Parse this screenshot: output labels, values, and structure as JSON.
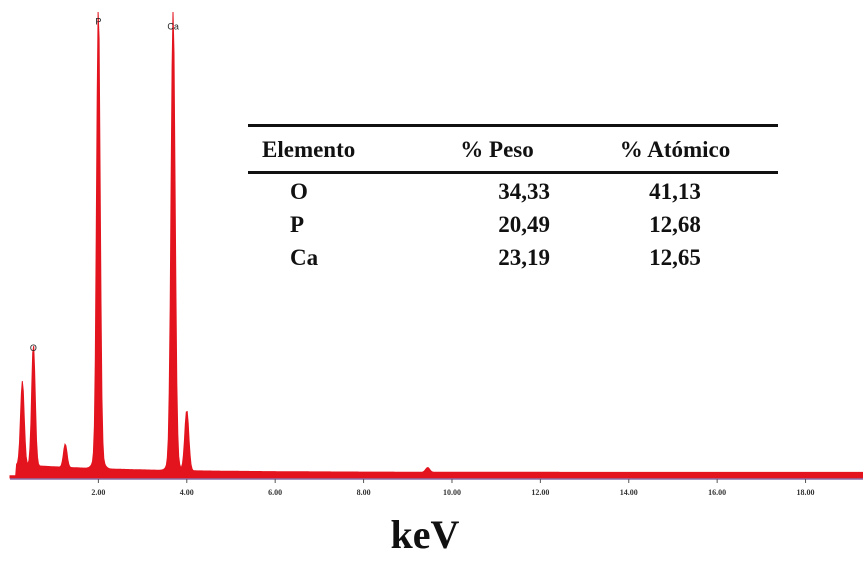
{
  "chart_data": {
    "type": "line",
    "xlabel": "keV",
    "xlim": [
      0,
      19.3
    ],
    "ylim": [
      0,
      1.0
    ],
    "x_tick_labels": [
      "2.00",
      "4.00",
      "6.00",
      "8.00",
      "10.00",
      "12.00",
      "14.00",
      "16.00",
      "18.00"
    ],
    "x_ticks": [
      2,
      4,
      6,
      8,
      10,
      12,
      14,
      16,
      18
    ],
    "series_color": "#e3141e",
    "peaks": [
      {
        "label": "",
        "x": 0.28,
        "height": 0.18
      },
      {
        "label": "O",
        "x": 0.53,
        "height": 0.26
      },
      {
        "label": "",
        "x": 1.25,
        "height": 0.05
      },
      {
        "label": "P",
        "x": 2.0,
        "height": 0.96
      },
      {
        "label": "Ca",
        "x": 3.69,
        "height": 0.95
      },
      {
        "label": "",
        "x": 4.0,
        "height": 0.13
      },
      {
        "label": "",
        "x": 9.45,
        "height": 0.01
      }
    ],
    "table": {
      "headers": [
        "Elemento",
        "% Peso",
        "% Atómico"
      ],
      "rows": [
        [
          "O",
          "34,33",
          "41,13"
        ],
        [
          "P",
          "20,49",
          "12,68"
        ],
        [
          "Ca",
          "23,19",
          "12,65"
        ]
      ]
    }
  },
  "table": {
    "headers": [
      "Elemento",
      "% Peso",
      "% Atómico"
    ],
    "rows": [
      {
        "element": "O",
        "peso": "34,33",
        "atomico": "41,13"
      },
      {
        "element": "P",
        "peso": "20,49",
        "atomico": "12,68"
      },
      {
        "element": "Ca",
        "peso": "23,19",
        "atomico": "12,65"
      }
    ]
  },
  "xlabel": "keV"
}
